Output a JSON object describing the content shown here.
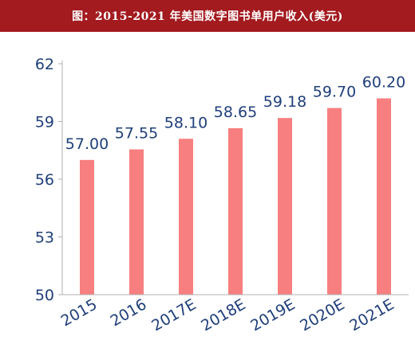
{
  "title": "图：2015-2021 年美国数字图书单用户收入(美元)",
  "colors": {
    "title_bar": "#a31a1f",
    "title_text": "#ffffff",
    "bar": "#f77f7f",
    "axis_text": "#1f3f7a",
    "axis_line": "#b0b0b0"
  },
  "chart_data": {
    "type": "bar",
    "title": "图：2015-2021 年美国数字图书单用户收入(美元)",
    "categories": [
      "2015",
      "2016",
      "2017E",
      "2018E",
      "2019E",
      "2020E",
      "2021E"
    ],
    "values": [
      57.0,
      57.55,
      58.1,
      58.65,
      59.18,
      59.7,
      60.2
    ],
    "value_labels": [
      "57.00",
      "57.55",
      "58.10",
      "58.65",
      "59.18",
      "59.70",
      "60.20"
    ],
    "ylim": [
      50,
      62
    ],
    "yticks": [
      50,
      53,
      56,
      59,
      62
    ],
    "xlabel": "",
    "ylabel": "",
    "grid": false,
    "legend": "none"
  }
}
